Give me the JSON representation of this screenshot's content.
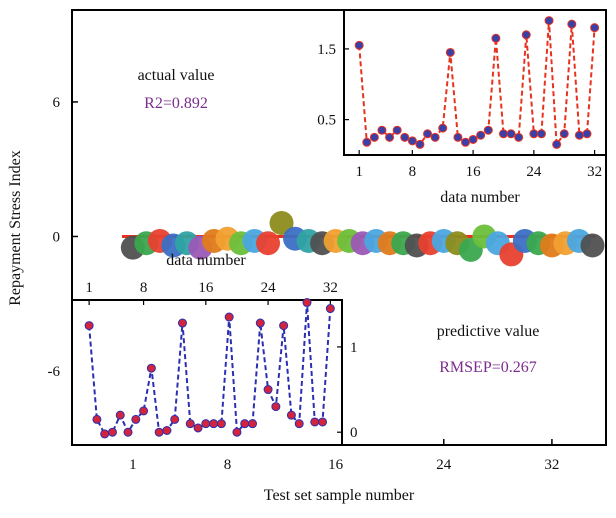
{
  "chart_data": [
    {
      "panel": "main",
      "type": "scatter",
      "xlabel": "Test set sample number",
      "ylabel": "Repayment Stress Index",
      "xticks": [
        "1",
        "8",
        "16",
        "24",
        "32"
      ],
      "xtick_values": [
        1,
        8,
        16,
        24,
        32
      ],
      "yticks": [
        "-6",
        "0",
        "6"
      ],
      "ytick_values": [
        -6,
        0,
        6
      ],
      "xlim": [
        -3.5,
        36
      ],
      "ylim": [
        -9.3,
        10.1
      ],
      "reference_line": 0,
      "x": [
        1,
        2,
        3,
        4,
        5,
        6,
        7,
        8,
        9,
        10,
        11,
        12,
        13,
        14,
        15,
        16,
        17,
        18,
        19,
        20,
        21,
        22,
        23,
        24,
        25,
        26,
        27,
        28,
        29,
        30,
        31,
        32,
        33,
        34,
        35
      ],
      "values": [
        -0.5,
        -0.3,
        -0.2,
        -0.4,
        -0.3,
        -0.5,
        -0.2,
        -0.1,
        -0.3,
        -0.2,
        -0.3,
        0.6,
        -0.1,
        -0.2,
        -0.3,
        -0.2,
        -0.2,
        -0.3,
        -0.2,
        -0.3,
        -0.3,
        -0.4,
        -0.3,
        -0.2,
        -0.3,
        -0.6,
        0.0,
        -0.3,
        -0.8,
        -0.2,
        -0.3,
        -0.4,
        -0.3,
        -0.2,
        -0.4
      ],
      "colors": [
        "#505050",
        "#3aa84e",
        "#e8402f",
        "#3b6fc4",
        "#2fa3a3",
        "#9b59b6",
        "#e07b1a",
        "#f0a030",
        "#6cbf3a",
        "#4aa6e0",
        "#e8402f",
        "#8c8c1c",
        "#3b6fc4",
        "#2fa3a3",
        "#505050",
        "#f0a030",
        "#6cbf3a",
        "#9b59b6",
        "#4aa6e0",
        "#e07b1a",
        "#3aa84e",
        "#505050",
        "#e8402f",
        "#4aa6e0",
        "#8c8c1c",
        "#3aa84e",
        "#6cbf3a",
        "#4aa6e0",
        "#e8402f",
        "#3b6fc4",
        "#3aa84e",
        "#e07b1a",
        "#f0a030",
        "#4aa6e0",
        "#505050"
      ]
    },
    {
      "panel": "actual",
      "type": "line",
      "title": "actual value",
      "metric": "R2=0.892",
      "xlabel": "data number",
      "xticks": [
        "1",
        "8",
        "16",
        "24",
        "32"
      ],
      "xtick_values": [
        1,
        8,
        16,
        24,
        32
      ],
      "yticks": [
        "0.5",
        "1.5"
      ],
      "ytick_values": [
        0.5,
        1.5
      ],
      "xlim": [
        -1,
        33.5
      ],
      "ylim": [
        0.0,
        2.05
      ],
      "line_color": "#e8321e",
      "marker_color": "#3a40a8",
      "x": [
        1,
        2,
        3,
        4,
        5,
        6,
        7,
        8,
        9,
        10,
        11,
        12,
        13,
        14,
        15,
        16,
        17,
        18,
        19,
        20,
        21,
        22,
        23,
        24,
        25,
        26,
        27,
        28,
        29,
        30,
        31,
        32
      ],
      "values": [
        1.55,
        0.18,
        0.25,
        0.35,
        0.25,
        0.35,
        0.25,
        0.2,
        0.15,
        0.3,
        0.25,
        0.38,
        1.45,
        0.25,
        0.18,
        0.22,
        0.28,
        0.35,
        1.65,
        0.3,
        0.3,
        0.25,
        1.7,
        0.3,
        0.3,
        1.9,
        0.15,
        0.3,
        1.85,
        0.28,
        0.3,
        1.8
      ]
    },
    {
      "panel": "predictive",
      "type": "line",
      "title": "predictive value",
      "metric": "RMSEP=0.267",
      "xlabel": "data number",
      "xticks": [
        "1",
        "8",
        "16",
        "24",
        "32"
      ],
      "xtick_values": [
        1,
        8,
        16,
        24,
        32
      ],
      "yticks": [
        "0",
        "1"
      ],
      "ytick_values": [
        0,
        1
      ],
      "xlim": [
        -1.2,
        33.5
      ],
      "ylim": [
        -0.15,
        1.55
      ],
      "line_color": "#2b2fb0",
      "marker_color": "#d2243c",
      "x": [
        1,
        2,
        3,
        4,
        5,
        6,
        7,
        8,
        9,
        10,
        11,
        12,
        13,
        14,
        15,
        16,
        17,
        18,
        19,
        20,
        21,
        22,
        23,
        24,
        25,
        26,
        27,
        28,
        29,
        30,
        31,
        32
      ],
      "values": [
        1.25,
        0.15,
        -0.02,
        0.0,
        0.2,
        0.0,
        0.15,
        0.25,
        0.75,
        0.0,
        0.02,
        0.15,
        1.28,
        0.1,
        0.05,
        0.1,
        0.1,
        0.1,
        1.35,
        0.0,
        0.1,
        0.1,
        1.28,
        0.5,
        0.3,
        1.25,
        0.2,
        0.1,
        1.52,
        0.12,
        0.12,
        1.45
      ]
    }
  ]
}
